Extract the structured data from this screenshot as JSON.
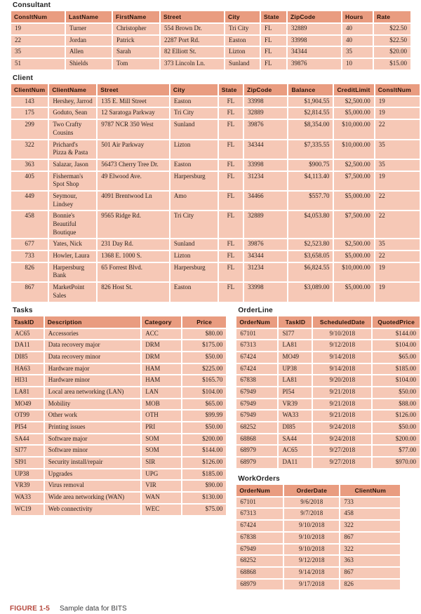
{
  "caption": {
    "label": "FIGURE 1-5",
    "text": "Sample data for BITS"
  },
  "colors": {
    "header_bg": "#E99C80",
    "row_bg": "#F6C8B6",
    "caption_red": "#B5463B"
  },
  "tables": {
    "consultant": {
      "title": "Consultant",
      "headers": [
        "ConsltNum",
        "LastName",
        "FirstName",
        "Street",
        "City",
        "State",
        "ZipCode",
        "Hours",
        "Rate"
      ],
      "rows": [
        [
          "19",
          "Turner",
          "Christopher",
          "554 Brown Dr.",
          "Tri City",
          "FL",
          "32889",
          "40",
          "$22.50"
        ],
        [
          "22",
          "Jordan",
          "Patrick",
          "2287 Port Rd.",
          "Easton",
          "FL",
          "33998",
          "40",
          "$22.50"
        ],
        [
          "35",
          "Allen",
          "Sarah",
          "82 Elliott St.",
          "Lizton",
          "FL",
          "34344",
          "35",
          "$20.00"
        ],
        [
          "51",
          "Shields",
          "Tom",
          "373 Lincoln Ln.",
          "Sunland",
          "FL",
          "39876",
          "10",
          "$15.00"
        ]
      ]
    },
    "client": {
      "title": "Client",
      "headers": [
        "ClientNum",
        "ClientName",
        "Street",
        "City",
        "State",
        "ZipCode",
        "Balance",
        "CreditLimit",
        "ConsltNum"
      ],
      "rows": [
        [
          "143",
          "Hershey, Jarrod",
          "135 E. Mill Street",
          "Easton",
          "FL",
          "33998",
          "$1,904.55",
          "$2,500.00",
          "19"
        ],
        [
          "175",
          "Goduto, Sean",
          "12 Saratoga Parkway",
          "Tri City",
          "FL",
          "32889",
          "$2,814.55",
          "$5,000.00",
          "19"
        ],
        [
          "299",
          "Two Crafty Cousins",
          "9787 NCR 350 West",
          "Sunland",
          "FL",
          "39876",
          "$8,354.00",
          "$10,000.00",
          "22"
        ],
        [
          "322",
          "Prichard's Pizza & Pasta",
          "501 Air Parkway",
          "Lizton",
          "FL",
          "34344",
          "$7,335.55",
          "$10,000.00",
          "35"
        ],
        [
          "363",
          "Salazar, Jason",
          "56473 Cherry Tree Dr.",
          "Easton",
          "FL",
          "33998",
          "$900.75",
          "$2,500.00",
          "35"
        ],
        [
          "405",
          "Fisherman's Spot Shop",
          "49 Elwood Ave.",
          "Harpersburg",
          "FL",
          "31234",
          "$4,113.40",
          "$7,500.00",
          "19"
        ],
        [
          "449",
          "Seymour, Lindsey",
          "4091 Brentwood Ln",
          "Amo",
          "FL",
          "34466",
          "$557.70",
          "$5,000.00",
          "22"
        ],
        [
          "458",
          "Bonnie's Beautiful Boutique",
          "9565 Ridge Rd.",
          "Tri City",
          "FL",
          "32889",
          "$4,053.80",
          "$7,500.00",
          "22"
        ],
        [
          "677",
          "Yates, Nick",
          "231 Day Rd.",
          "Sunland",
          "FL",
          "39876",
          "$2,523.80",
          "$2,500.00",
          "35"
        ],
        [
          "733",
          "Howler, Laura",
          "1368 E. 1000 S.",
          "Lizton",
          "FL",
          "34344",
          "$3,658.05",
          "$5,000.00",
          "22"
        ],
        [
          "826",
          "Harpersburg Bank",
          "65 Forrest Blvd.",
          "Harpersburg",
          "FL",
          "31234",
          "$6,824.55",
          "$10,000.00",
          "19"
        ],
        [
          "867",
          "MarketPoint Sales",
          "826 Host St.",
          "Easton",
          "FL",
          "33998",
          "$3,089.00",
          "$5,000.00",
          "19"
        ]
      ]
    },
    "tasks": {
      "title": "Tasks",
      "headers": [
        "TaskID",
        "Description",
        "Category",
        "Price"
      ],
      "rows": [
        [
          "AC65",
          "Accessories",
          "ACC",
          "$80.00"
        ],
        [
          "DA11",
          "Data recovery major",
          "DRM",
          "$175.00"
        ],
        [
          "DI85",
          "Data recovery minor",
          "DRM",
          "$50.00"
        ],
        [
          "HA63",
          "Hardware major",
          "HAM",
          "$225.00"
        ],
        [
          "HI31",
          "Hardware minor",
          "HAM",
          "$165.70"
        ],
        [
          "LA81",
          "Local area networking (LAN)",
          "LAN",
          "$104.00"
        ],
        [
          "MO49",
          "Mobility",
          "MOB",
          "$65.00"
        ],
        [
          "OT99",
          "Other work",
          "OTH",
          "$99.99"
        ],
        [
          "PI54",
          "Printing issues",
          "PRI",
          "$50.00"
        ],
        [
          "SA44",
          "Software major",
          "SOM",
          "$200.00"
        ],
        [
          "SI77",
          "Software minor",
          "SOM",
          "$144.00"
        ],
        [
          "SI91",
          "Security install/repair",
          "SIR",
          "$126.00"
        ],
        [
          "UP38",
          "Upgrades",
          "UPG",
          "$185.00"
        ],
        [
          "VR39",
          "Virus removal",
          "VIR",
          "$90.00"
        ],
        [
          "WA33",
          "Wide area networking (WAN)",
          "WAN",
          "$130.00"
        ],
        [
          "WC19",
          "Web connectivity",
          "WEC",
          "$75.00"
        ]
      ]
    },
    "orderline": {
      "title": "OrderLine",
      "headers": [
        "OrderNum",
        "TaskID",
        "ScheduledDate",
        "QuotedPrice"
      ],
      "rows": [
        [
          "67101",
          "SI77",
          "9/10/2018",
          "$144.00"
        ],
        [
          "67313",
          "LA81",
          "9/12/2018",
          "$104.00"
        ],
        [
          "67424",
          "MO49",
          "9/14/2018",
          "$65.00"
        ],
        [
          "67424",
          "UP38",
          "9/14/2018",
          "$185.00"
        ],
        [
          "67838",
          "LA81",
          "9/20/2018",
          "$104.00"
        ],
        [
          "67949",
          "PI54",
          "9/21/2018",
          "$50.00"
        ],
        [
          "67949",
          "VR39",
          "9/21/2018",
          "$88.00"
        ],
        [
          "67949",
          "WA33",
          "9/21/2018",
          "$126.00"
        ],
        [
          "68252",
          "DI85",
          "9/24/2018",
          "$50.00"
        ],
        [
          "68868",
          "SA44",
          "9/24/2018",
          "$200.00"
        ],
        [
          "68979",
          "AC65",
          "9/27/2018",
          "$77.00"
        ],
        [
          "68979",
          "DA11",
          "9/27/2018",
          "$970.00"
        ]
      ]
    },
    "workorders": {
      "title": "WorkOrders",
      "headers": [
        "OrderNum",
        "OrderDate",
        "ClientNum"
      ],
      "rows": [
        [
          "67101",
          "9/6/2018",
          "733"
        ],
        [
          "67313",
          "9/7/2018",
          "458"
        ],
        [
          "67424",
          "9/10/2018",
          "322"
        ],
        [
          "67838",
          "9/10/2018",
          "867"
        ],
        [
          "67949",
          "9/10/2018",
          "322"
        ],
        [
          "68252",
          "9/12/2018",
          "363"
        ],
        [
          "68868",
          "9/14/2018",
          "867"
        ],
        [
          "68979",
          "9/17/2018",
          "826"
        ]
      ]
    }
  }
}
